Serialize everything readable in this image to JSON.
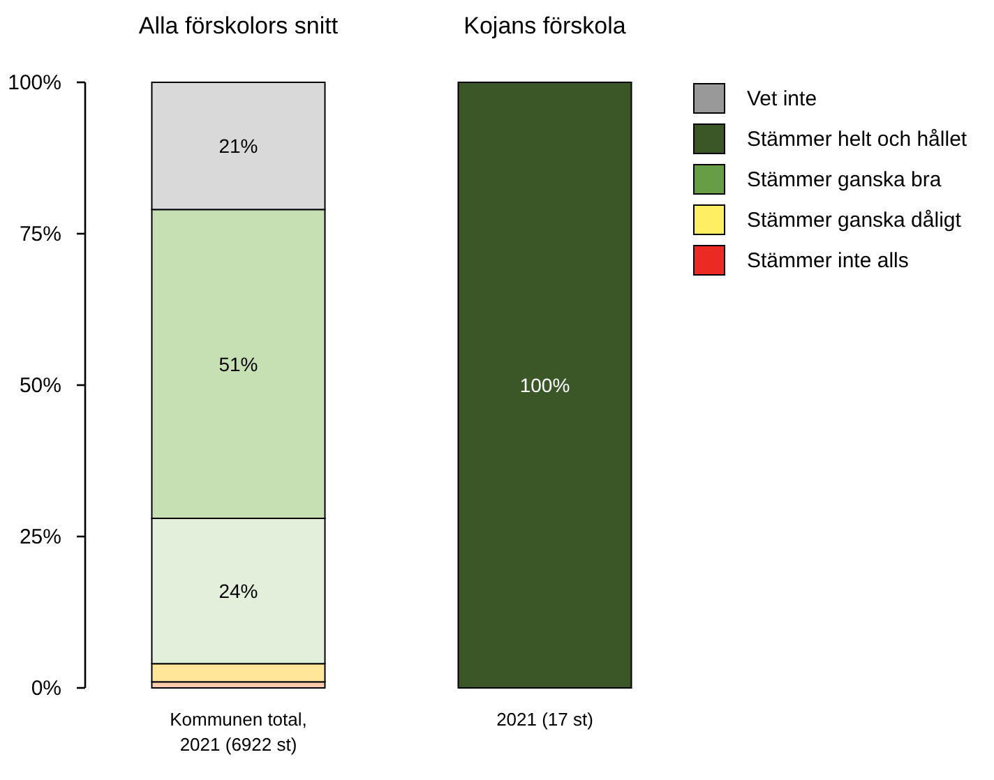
{
  "chart_data": {
    "type": "bar",
    "categories": [
      "Kommunen total, 2021 (6922 st)",
      "2021 (17 st)"
    ],
    "stacked": true,
    "ylim": [
      0,
      100
    ],
    "yticks": [
      {
        "value": 0,
        "label": "0%"
      },
      {
        "value": 25,
        "label": "25%"
      },
      {
        "value": 50,
        "label": "50%"
      },
      {
        "value": 75,
        "label": "75%"
      },
      {
        "value": 100,
        "label": "100%"
      }
    ],
    "legend": "right",
    "annotations": [
      "Alla förskolors snitt",
      "Kojans förskola"
    ],
    "series": [
      {
        "color": "#f8cbad",
        "values": [
          1,
          null
        ]
      },
      {
        "color": "#ffe699",
        "values": [
          3,
          null
        ]
      },
      {
        "color": "#e2efda",
        "values": [
          24,
          null
        ],
        "value_labels": [
          "24%",
          null
        ]
      },
      {
        "color": "#c6e0b4",
        "values": [
          51,
          null
        ],
        "value_labels": [
          "51%",
          null
        ]
      },
      {
        "color": "#d9d9d9",
        "values": [
          21,
          null
        ],
        "value_labels": [
          "21%",
          null
        ]
      },
      {
        "name": "Stämmer inte alls",
        "color": "#ea2a23",
        "values": [
          null,
          null
        ]
      },
      {
        "name": "Stämmer ganska dåligt",
        "color": "#fdee64",
        "values": [
          null,
          null
        ]
      },
      {
        "name": "Stämmer ganska bra",
        "color": "#669d45",
        "values": [
          null,
          null
        ]
      },
      {
        "name": "Stämmer helt och hållet",
        "color": "#3b5728",
        "values": [
          null,
          100
        ],
        "value_labels": [
          null,
          "100%"
        ]
      },
      {
        "name": "Vet inte",
        "color": "#999999",
        "values": [
          null,
          null
        ]
      }
    ]
  }
}
